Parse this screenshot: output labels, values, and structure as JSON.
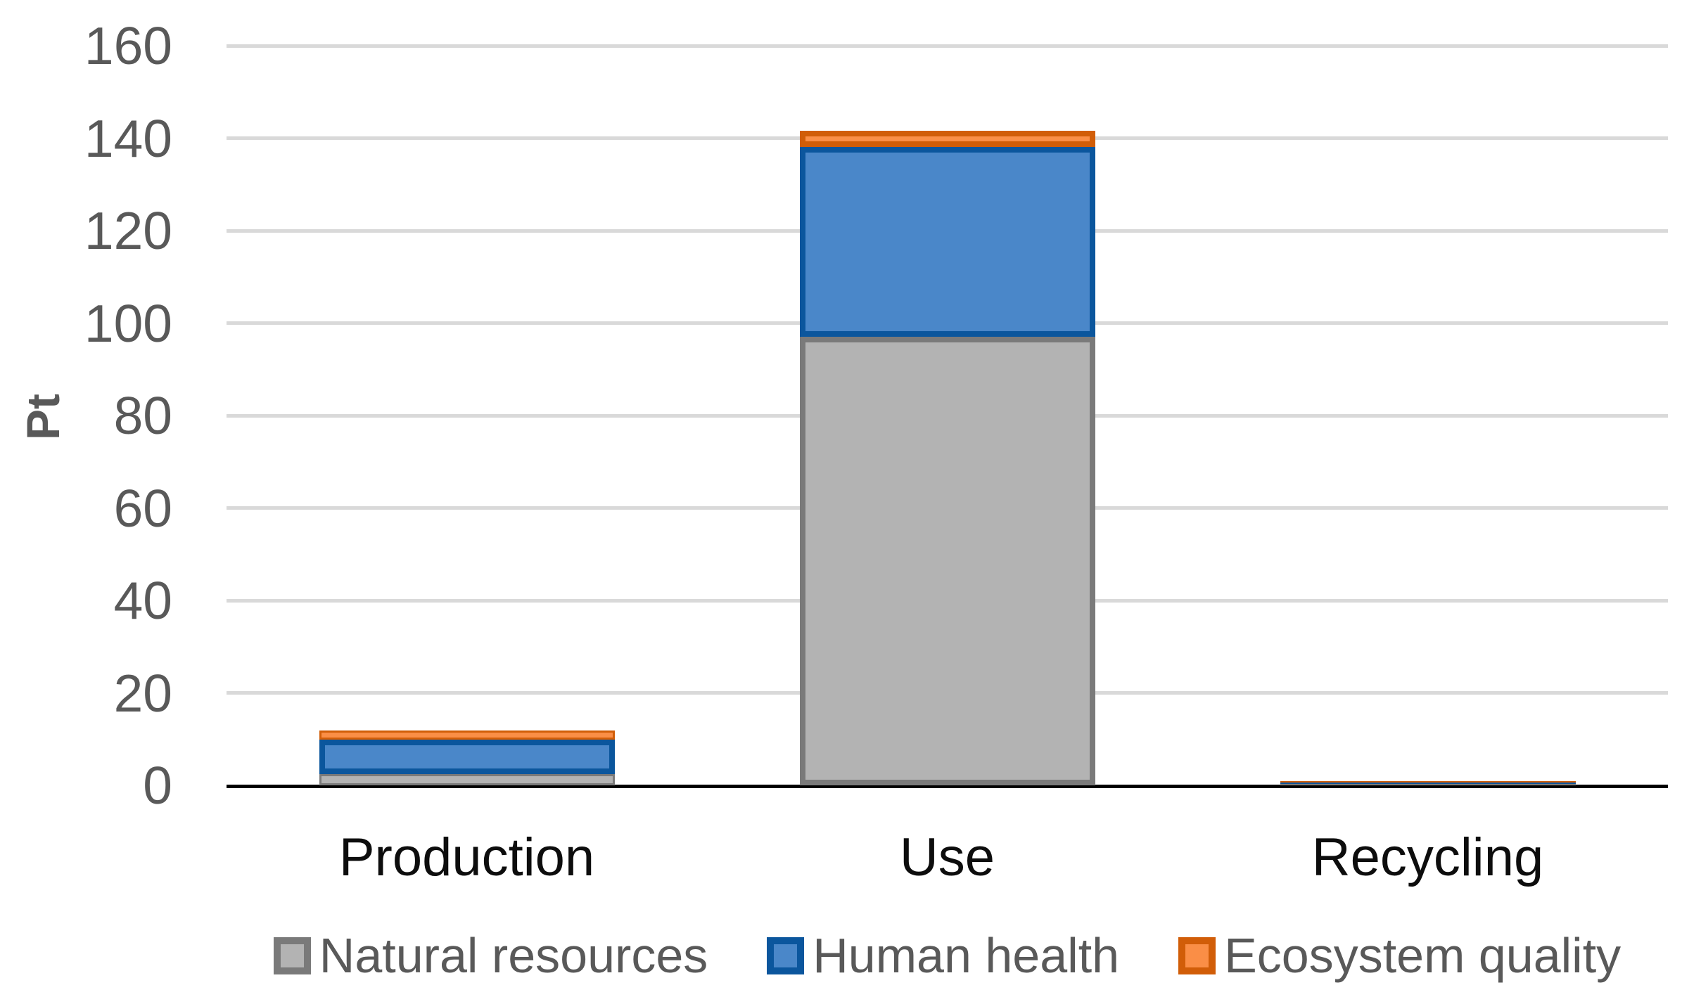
{
  "chart_data": {
    "type": "bar",
    "stacked": true,
    "title": "",
    "xlabel": "",
    "ylabel": "Pt",
    "categories": [
      "Production",
      "Use",
      "Recycling"
    ],
    "series": [
      {
        "name": "Natural resources",
        "values": [
          2.5,
          97,
          0.1
        ],
        "fill": "#B3B3B3",
        "border": "#7A7A7A"
      },
      {
        "name": "Human health",
        "values": [
          7.5,
          41,
          0.2
        ],
        "fill": "#4A87C9",
        "border": "#0B569D"
      },
      {
        "name": "Ecosystem quality",
        "values": [
          2,
          3.5,
          0.2
        ],
        "fill": "#FA8E46",
        "border": "#D15D08"
      }
    ],
    "totals": [
      12,
      141.5,
      0.5
    ],
    "ylim": [
      0,
      160
    ],
    "yticks": [
      0,
      20,
      40,
      60,
      80,
      100,
      120,
      140,
      160
    ],
    "grid": "horizontal",
    "legend_position": "bottom"
  },
  "colors": {
    "background": "#FFFFFF",
    "gridline": "#D9D9D9",
    "axis_line": "#000000",
    "tick_label": "#595959",
    "axis_title": "#595959",
    "category_label": "#0D0D0D",
    "legend_label": "#595959"
  }
}
